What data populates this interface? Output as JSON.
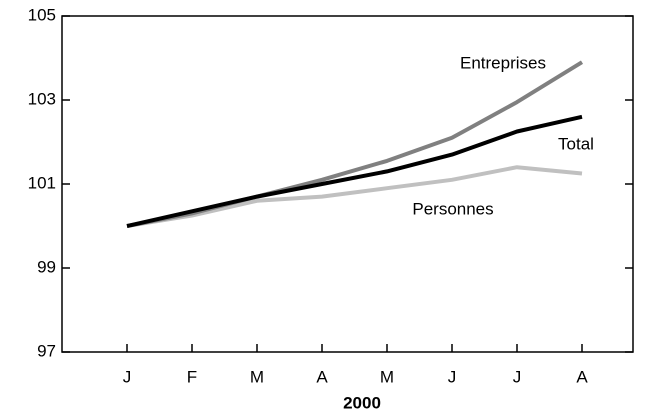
{
  "chart_data": {
    "type": "line",
    "xlabel": "2000",
    "categories": [
      "J",
      "F",
      "M",
      "A",
      "M",
      "J",
      "J",
      "A"
    ],
    "series": [
      {
        "name": "Entreprises",
        "color": "#808080",
        "values": [
          100.0,
          100.3,
          100.7,
          101.1,
          101.55,
          102.1,
          102.95,
          103.9
        ]
      },
      {
        "name": "Total",
        "color": "#000000",
        "values": [
          100.0,
          100.35,
          100.7,
          101.0,
          101.3,
          101.7,
          102.25,
          102.6
        ]
      },
      {
        "name": "Personnes",
        "color": "#c0c0c0",
        "values": [
          100.0,
          100.25,
          100.6,
          100.7,
          100.9,
          101.1,
          101.4,
          101.25
        ]
      }
    ],
    "ylim": [
      97,
      105
    ],
    "yticks": [
      97,
      99,
      101,
      103,
      105
    ]
  }
}
